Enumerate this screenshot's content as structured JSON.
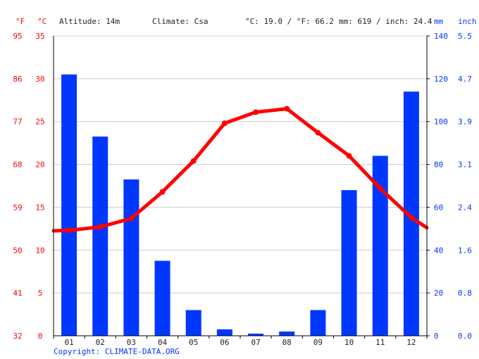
{
  "header": {
    "f_unit": "°F",
    "c_unit": "°C",
    "altitude": "Altitude: 14m",
    "climate": "Climate: Csa",
    "temp_avg": "°C: 19.0 / °F: 66.2",
    "precip_avg": "mm: 619 / inch: 24.4",
    "mm_unit": "mm",
    "inch_unit": "inch"
  },
  "footer": {
    "copyright": "Copyright: CLIMATE-DATA.ORG"
  },
  "colors": {
    "temperature": "#ff0000",
    "precipitation": "#0037ff",
    "grid": "#cccccc",
    "axis": "#000000"
  },
  "chart_data": {
    "type": "bar",
    "categories": [
      "01",
      "02",
      "03",
      "04",
      "05",
      "06",
      "07",
      "08",
      "09",
      "10",
      "11",
      "12"
    ],
    "series": [
      {
        "type": "bar",
        "axis": "right",
        "unit": "mm",
        "values": [
          122,
          93,
          73,
          35,
          12,
          3,
          1,
          2,
          12,
          68,
          84,
          114
        ]
      },
      {
        "type": "line",
        "axis": "left",
        "unit": "°C",
        "values": [
          12.3,
          12.7,
          13.7,
          16.8,
          20.4,
          24.8,
          26.1,
          26.5,
          23.7,
          21.0,
          17.2,
          13.8
        ]
      }
    ],
    "y_left": {
      "unit": "°C",
      "ylim": [
        0,
        35
      ],
      "ticks": [
        "0",
        "5",
        "10",
        "15",
        "20",
        "25",
        "30",
        "35"
      ]
    },
    "y_left_f": {
      "unit": "°F",
      "ticks": [
        "32",
        "41",
        "50",
        "59",
        "68",
        "77",
        "86",
        "95"
      ]
    },
    "y_right": {
      "unit": "mm",
      "ylim": [
        0,
        140
      ],
      "ticks": [
        "0",
        "20",
        "40",
        "60",
        "80",
        "100",
        "120",
        "140"
      ]
    },
    "y_right_inch": {
      "unit": "inch",
      "ticks": [
        "0.0",
        "0.8",
        "1.6",
        "2.4",
        "3.1",
        "3.9",
        "4.7",
        "5.5"
      ]
    },
    "grid": true
  }
}
